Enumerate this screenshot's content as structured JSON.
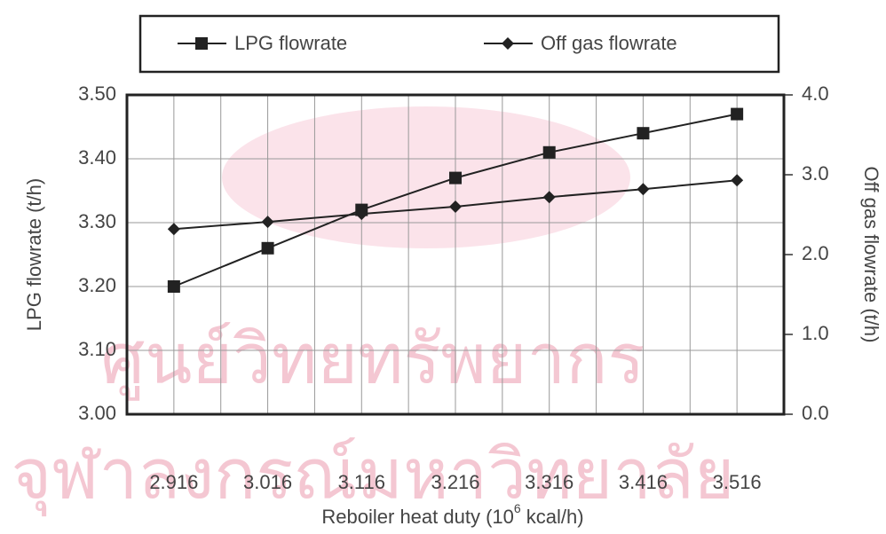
{
  "chart_data": {
    "type": "line",
    "watermarks": [
      "ศูนย์วิทยทรัพยากร",
      "จุฬาลงกรณ์มหาวิทยาลัย"
    ],
    "xlabel": [
      "Reboiler heat duty (10",
      "6",
      " kcal/h)"
    ],
    "ylabel": "LPG flowrate (t/h)",
    "y2label": "Off gas flowrate (t/h)",
    "categories": [
      "2.916",
      "3.016",
      "3.116",
      "3.216",
      "3.316",
      "3.416",
      "3.516"
    ],
    "series": [
      {
        "name": "LPG flowrate",
        "color": "#222222",
        "marker": "square",
        "values": [
          3.2,
          3.26,
          3.32,
          3.37,
          3.41,
          3.44,
          3.47
        ]
      },
      {
        "name": "Off gas flowrate",
        "color": "#222222",
        "marker": "diamond",
        "axis": "y2",
        "values": [
          2.32,
          2.41,
          2.51,
          2.6,
          2.72,
          2.82,
          2.93
        ]
      }
    ],
    "ylim": [
      3.0,
      3.5
    ],
    "yticks": [
      {
        "value": 3.0,
        "label": "3.00"
      },
      {
        "value": 3.1,
        "label": "3.10"
      },
      {
        "value": 3.2,
        "label": "3.20"
      },
      {
        "value": 3.3,
        "label": "3.30"
      },
      {
        "value": 3.4,
        "label": "3.40"
      },
      {
        "value": 3.5,
        "label": "3.50"
      }
    ],
    "y2lim": [
      0,
      4
    ],
    "y2ticks": [
      {
        "value": 0,
        "label": "0.0"
      },
      {
        "value": 1,
        "label": "1.0"
      },
      {
        "value": 2,
        "label": "2.0"
      },
      {
        "value": 3,
        "label": "3.0"
      },
      {
        "value": 4,
        "label": "4.0"
      }
    ],
    "grid": true,
    "legend": "top"
  }
}
